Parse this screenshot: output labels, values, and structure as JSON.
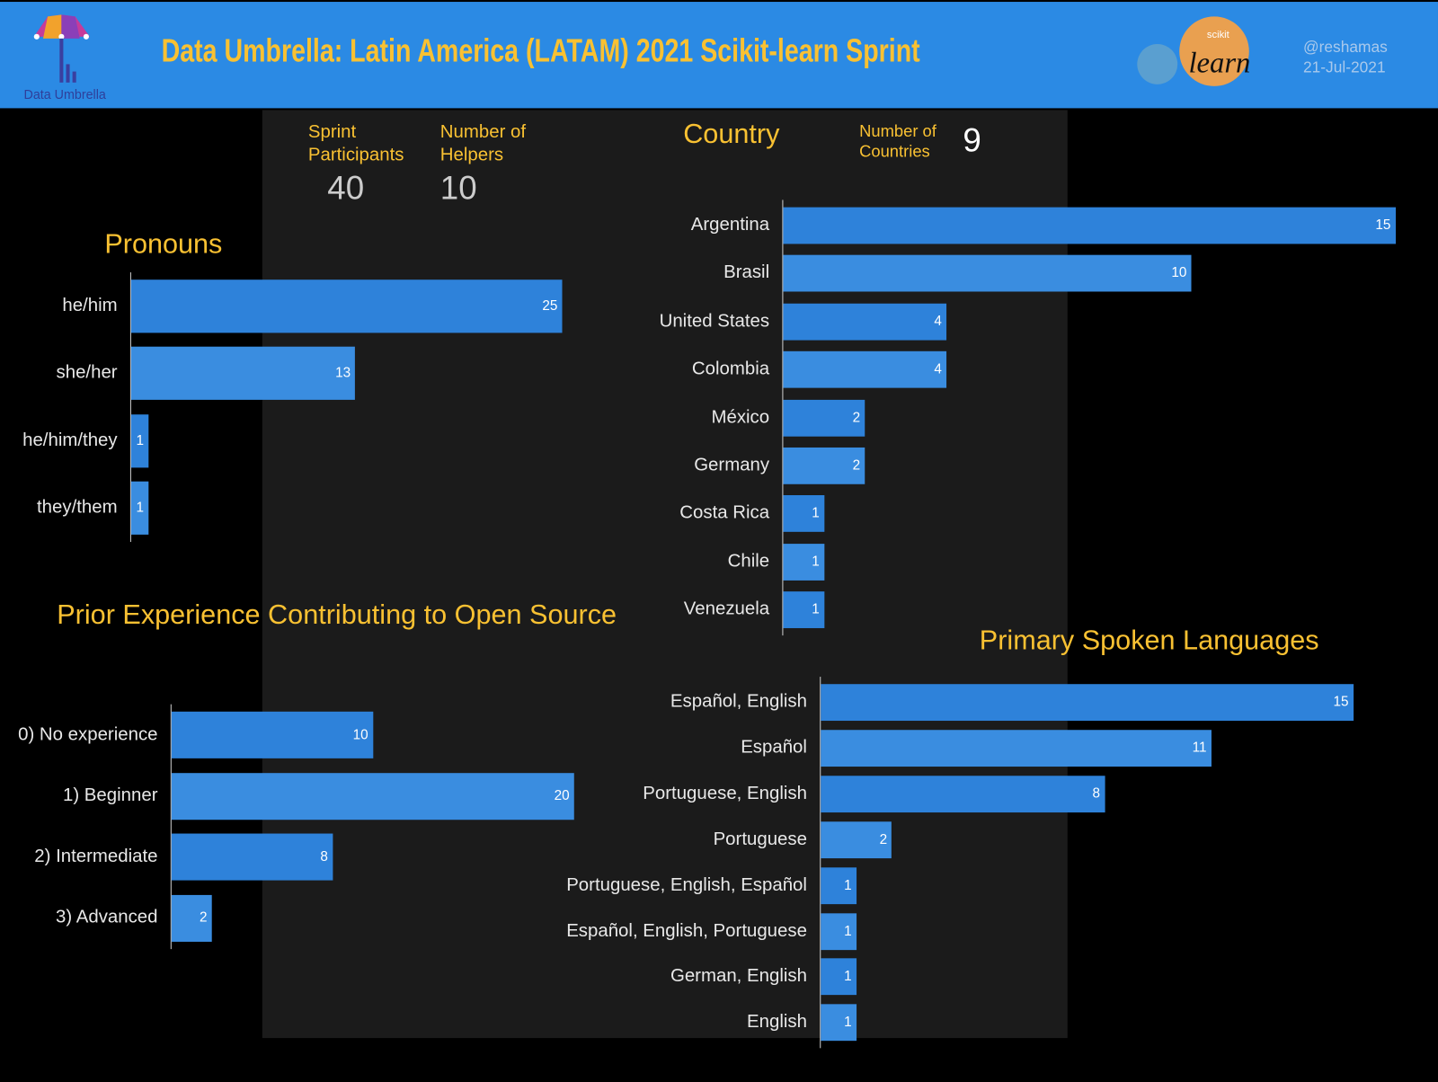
{
  "header": {
    "logo_text": "Data Umbrella",
    "title": "Data Umbrella:  Latin America (LATAM) 2021 Scikit-learn Sprint",
    "sklearn_logo_small": "scikit",
    "sklearn_logo_big": "learn",
    "author": "@reshamas",
    "date": "21-Jul-2021",
    "colors": {
      "header_bg": "#2b8ae4",
      "title": "#f9c132",
      "bar": "#2e82da"
    }
  },
  "kpis": {
    "participants_label_1": "Sprint",
    "participants_label_2": "Participants",
    "participants_value": "40",
    "helpers_label_1": "Number of",
    "helpers_label_2": "Helpers",
    "helpers_value": "10",
    "countries_label_1": "Number of",
    "countries_label_2": "Countries",
    "countries_value": "9"
  },
  "chart_data": [
    {
      "id": "pronouns",
      "type": "bar",
      "orientation": "horizontal",
      "title": "Pronouns",
      "categories": [
        "he/him",
        "she/her",
        "he/him/they",
        "they/them"
      ],
      "values": [
        25,
        13,
        1,
        1
      ]
    },
    {
      "id": "country",
      "type": "bar",
      "orientation": "horizontal",
      "title": "Country",
      "categories": [
        "Argentina",
        "Brasil",
        "United States",
        "Colombia",
        "México",
        "Germany",
        "Costa Rica",
        "Chile",
        "Venezuela"
      ],
      "values": [
        15,
        10,
        4,
        4,
        2,
        2,
        1,
        1,
        1
      ]
    },
    {
      "id": "experience",
      "type": "bar",
      "orientation": "horizontal",
      "title": "Prior Experience Contributing to Open Source",
      "categories": [
        "0) No experience",
        "1) Beginner",
        "2) Intermediate",
        "3) Advanced"
      ],
      "values": [
        10,
        20,
        8,
        2
      ]
    },
    {
      "id": "languages",
      "type": "bar",
      "orientation": "horizontal",
      "title": "Primary Spoken Languages",
      "categories": [
        "Español, English",
        "Español",
        "Portuguese, English",
        "Portuguese",
        "Portuguese, English, Español",
        "Español, English, Portuguese",
        "German, English",
        "English"
      ],
      "values": [
        15,
        11,
        8,
        2,
        1,
        1,
        1,
        1
      ]
    }
  ]
}
